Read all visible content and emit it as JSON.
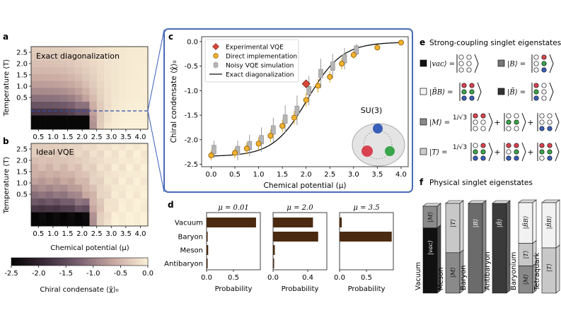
{
  "panels": {
    "a": {
      "letter": "a",
      "label": "Exact diagonalization"
    },
    "b": {
      "letter": "b",
      "label": "Ideal VQE"
    },
    "c": {
      "letter": "c"
    },
    "d": {
      "letter": "d"
    },
    "e": {
      "letter": "e",
      "title": "Strong-coupling singlet eigenstates"
    },
    "f": {
      "letter": "f",
      "title": "Physical singlet eigenstates"
    }
  },
  "heatmaps": {
    "ylabel": "Temperature ⟨T⟩",
    "xlabel": "Chemical potential (μ)",
    "x_ticks": [
      "0.5",
      "1.0",
      "1.5",
      "2.0",
      "2.5",
      "3.0",
      "3.5",
      "4.0"
    ],
    "y_ticks": [
      "2.5",
      "2.0",
      "1.5",
      "1.0",
      "0.5"
    ],
    "colorbar_ticks": [
      "-2.5",
      "-2.0",
      "-1.5",
      "-1.0",
      "-0.5",
      "0.0"
    ],
    "colorbar_label": "Chiral condensate ⟨χ̂⟩₀"
  },
  "chart_data": [
    {
      "type": "line",
      "panel": "c",
      "xlabel": "Chemical potential (μ)",
      "ylabel": "Chiral condensate ⟨χ̂⟩₀",
      "xlim": [
        -0.2,
        4.15
      ],
      "ylim": [
        -2.55,
        0.1
      ],
      "x_ticks": [
        "0.0",
        "0.5",
        "1.0",
        "1.5",
        "2.0",
        "2.5",
        "3.0",
        "3.5",
        "4.0"
      ],
      "y_ticks": [
        "0.0",
        "-0.5",
        "-1.0",
        "-1.5",
        "-2.0",
        "-2.5"
      ],
      "legend": [
        "Experimental VQE",
        "Direct implementation",
        "Noisy VQE simulation",
        "Exact diagonalization"
      ],
      "legend_position": "upper-left",
      "annotation": "SU(3)",
      "series": [
        {
          "name": "Exact diagonalization",
          "x": [
            0.0,
            0.25,
            0.5,
            0.75,
            1.0,
            1.25,
            1.5,
            1.75,
            2.0,
            2.25,
            2.5,
            2.75,
            3.0,
            3.25,
            3.5,
            3.75,
            4.0
          ],
          "y": [
            -2.32,
            -2.3,
            -2.26,
            -2.19,
            -2.08,
            -1.88,
            -1.62,
            -1.3,
            -0.98,
            -0.7,
            -0.47,
            -0.3,
            -0.18,
            -0.1,
            -0.06,
            -0.04,
            -0.02
          ]
        },
        {
          "name": "Direct implementation",
          "x": [
            0.0,
            0.5,
            0.75,
            1.0,
            1.25,
            1.5,
            1.75,
            2.0,
            2.25,
            2.5,
            2.75,
            3.0,
            3.5,
            4.0
          ],
          "y": [
            -2.32,
            -2.27,
            -2.18,
            -2.08,
            -1.92,
            -1.72,
            -1.55,
            -1.19,
            -0.9,
            -0.72,
            -0.45,
            -0.27,
            -0.12,
            -0.02
          ],
          "err": [
            0.1,
            0.1,
            0.12,
            0.13,
            0.13,
            0.13,
            0.14,
            0.14,
            0.14,
            0.12,
            0.12,
            0.08,
            0.06,
            0.04
          ]
        },
        {
          "name": "Noisy VQE simulation",
          "x": [
            0.0,
            0.5,
            0.75,
            1.0,
            1.25,
            1.5,
            1.75,
            2.0,
            2.25,
            2.5,
            2.75,
            3.0
          ],
          "y": [
            -2.2,
            -2.22,
            -2.12,
            -2.0,
            -1.8,
            -1.58,
            -1.4,
            -1.0,
            -0.65,
            -0.5,
            -0.35,
            -0.17
          ],
          "err": [
            0.18,
            0.2,
            0.22,
            0.25,
            0.25,
            0.28,
            0.3,
            0.3,
            0.3,
            0.25,
            0.22,
            0.12
          ]
        },
        {
          "name": "Experimental VQE",
          "x": [
            2.0
          ],
          "y": [
            -0.86
          ]
        }
      ]
    },
    {
      "type": "bar",
      "panel": "d",
      "title": "μ = 0.01",
      "categories": [
        "Vacuum",
        "Baryon",
        "Meson",
        "Antibaryon"
      ],
      "values": [
        0.92,
        0.02,
        0.03,
        0.01
      ],
      "xlabel": "Probability",
      "x_ticks": [
        "0.0",
        "0.5"
      ],
      "xlim": [
        0,
        1.0
      ]
    },
    {
      "type": "bar",
      "panel": "d",
      "title": "μ = 2.0",
      "categories": [
        "Vacuum",
        "Baryon",
        "Meson",
        "Antibaryon"
      ],
      "values": [
        0.46,
        0.52,
        0.02,
        0.01
      ],
      "xlabel": "Probability",
      "x_ticks": [
        "0.0",
        "0.4"
      ],
      "xlim": [
        0,
        0.62
      ]
    },
    {
      "type": "bar",
      "panel": "d",
      "title": "μ = 3.5",
      "categories": [
        "Vacuum",
        "Baryon",
        "Meson",
        "Antibaryon"
      ],
      "values": [
        0.04,
        0.97,
        0.0,
        0.0
      ],
      "xlabel": "Probability",
      "x_ticks": [
        "0.0",
        "0.5"
      ],
      "xlim": [
        0,
        1.0
      ]
    }
  ],
  "eigenstates": [
    {
      "symbol": "|vac⟩ =",
      "swatch": "#111111"
    },
    {
      "symbol": "|B⟩ =",
      "swatch": "#777777"
    },
    {
      "symbol": "|B̄B⟩ =",
      "swatch": "#f4f4f4"
    },
    {
      "symbol": "|B̄⟩ =",
      "swatch": "#333333"
    },
    {
      "symbol": "|M⟩ =",
      "swatch": "#8a8a8a",
      "prefactor": "1/√3"
    },
    {
      "symbol": "|T⟩ =",
      "swatch": "#cccccc",
      "prefactor": "1/√3"
    }
  ],
  "quark_colors": {
    "red": "#d94350",
    "green": "#3aa54a",
    "blue": "#3a5fb8"
  },
  "towers": [
    {
      "name": "Vacuum",
      "segments": [
        "|M⟩",
        "|vac⟩"
      ]
    },
    {
      "name": "Meson",
      "segments": [
        "|T⟩",
        "|M⟩"
      ]
    },
    {
      "name": "Baryon",
      "segments": [
        "|B⟩"
      ]
    },
    {
      "name": "Antibaryon",
      "segments": [
        "|B̄⟩"
      ]
    },
    {
      "name": "Baryonium",
      "segments": [
        "|B̄B⟩",
        "|T⟩",
        "|M⟩"
      ]
    },
    {
      "name": "Tetraquark",
      "segments": [
        "|B̄B⟩",
        "|T⟩"
      ]
    }
  ]
}
